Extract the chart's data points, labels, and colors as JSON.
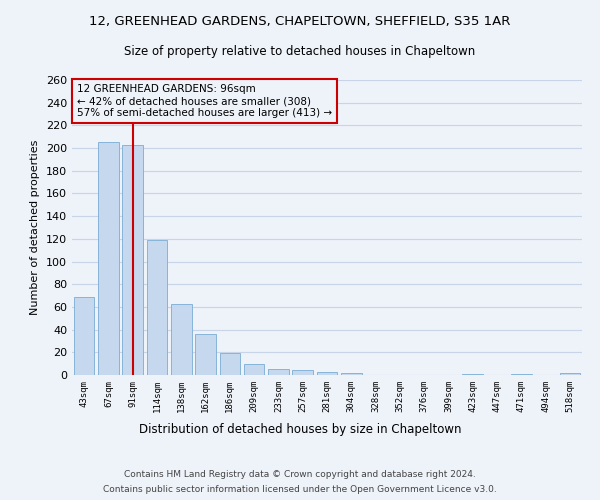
{
  "title": "12, GREENHEAD GARDENS, CHAPELTOWN, SHEFFIELD, S35 1AR",
  "subtitle": "Size of property relative to detached houses in Chapeltown",
  "xlabel": "Distribution of detached houses by size in Chapeltown",
  "ylabel": "Number of detached properties",
  "footer_line1": "Contains HM Land Registry data © Crown copyright and database right 2024.",
  "footer_line2": "Contains public sector information licensed under the Open Government Licence v3.0.",
  "bar_color": "#c5d8ee",
  "bar_edge_color": "#7aadd4",
  "grid_color": "#c8d4e8",
  "red_line_color": "#cc0000",
  "annotation_text_line1": "12 GREENHEAD GARDENS: 96sqm",
  "annotation_text_line2": "← 42% of detached houses are smaller (308)",
  "annotation_text_line3": "57% of semi-detached houses are larger (413) →",
  "categories": [
    "43sqm",
    "67sqm",
    "91sqm",
    "114sqm",
    "138sqm",
    "162sqm",
    "186sqm",
    "209sqm",
    "233sqm",
    "257sqm",
    "281sqm",
    "304sqm",
    "328sqm",
    "352sqm",
    "376sqm",
    "399sqm",
    "423sqm",
    "447sqm",
    "471sqm",
    "494sqm",
    "518sqm"
  ],
  "values": [
    69,
    205,
    203,
    119,
    63,
    36,
    19,
    10,
    5,
    4,
    3,
    2,
    0,
    0,
    0,
    0,
    1,
    0,
    1,
    0,
    2
  ],
  "ylim": [
    0,
    260
  ],
  "yticks": [
    0,
    20,
    40,
    60,
    80,
    100,
    120,
    140,
    160,
    180,
    200,
    220,
    240,
    260
  ],
  "red_line_bar_index": 2,
  "background_color": "#eef2f9"
}
